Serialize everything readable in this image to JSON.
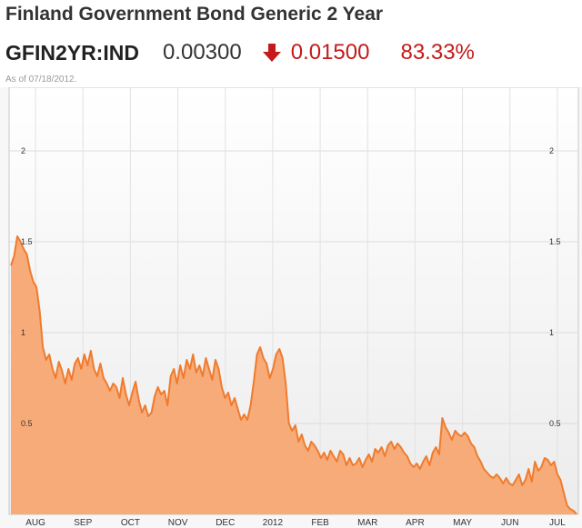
{
  "header": {
    "title": "Finland Government Bond Generic 2 Year",
    "ticker": "GFIN2YR:IND",
    "price": "0.00300",
    "change": "0.01500",
    "change_pct": "83.33%",
    "as_of": "As of 07/18/2012.",
    "change_icon": "arrow-down-icon",
    "down_color": "#c41a1a"
  },
  "chart_data": {
    "type": "area",
    "title": "",
    "xlabel": "",
    "ylabel": "",
    "ylim": [
      0,
      2.35
    ],
    "y_ticks": [
      "0.5",
      "1",
      "1.5",
      "2"
    ],
    "x_tick_labels": [
      "AUG",
      "SEP",
      "OCT",
      "NOV",
      "DEC",
      "2012",
      "FEB",
      "MAR",
      "APR",
      "MAY",
      "JUN",
      "JUL"
    ],
    "grid": true,
    "legend": "none",
    "fill_color": "#f7ab78",
    "line_color": "#ef7b2e",
    "series": [
      {
        "values": [
          1.37,
          1.42,
          1.53,
          1.5,
          1.46,
          1.43,
          1.34,
          1.28,
          1.25,
          1.12,
          0.92,
          0.85,
          0.88,
          0.8,
          0.75,
          0.84,
          0.79,
          0.72,
          0.8,
          0.74,
          0.83,
          0.86,
          0.8,
          0.88,
          0.82,
          0.9,
          0.8,
          0.76,
          0.83,
          0.75,
          0.72,
          0.68,
          0.72,
          0.7,
          0.64,
          0.75,
          0.66,
          0.6,
          0.67,
          0.73,
          0.63,
          0.56,
          0.6,
          0.54,
          0.56,
          0.65,
          0.7,
          0.66,
          0.68,
          0.6,
          0.76,
          0.8,
          0.72,
          0.82,
          0.75,
          0.85,
          0.8,
          0.88,
          0.78,
          0.82,
          0.76,
          0.86,
          0.8,
          0.74,
          0.85,
          0.8,
          0.7,
          0.64,
          0.67,
          0.6,
          0.64,
          0.58,
          0.52,
          0.55,
          0.52,
          0.6,
          0.73,
          0.88,
          0.92,
          0.86,
          0.83,
          0.75,
          0.8,
          0.88,
          0.91,
          0.86,
          0.72,
          0.5,
          0.46,
          0.49,
          0.4,
          0.44,
          0.38,
          0.35,
          0.4,
          0.38,
          0.35,
          0.31,
          0.34,
          0.3,
          0.35,
          0.32,
          0.29,
          0.35,
          0.33,
          0.27,
          0.31,
          0.27,
          0.28,
          0.31,
          0.26,
          0.3,
          0.33,
          0.29,
          0.36,
          0.34,
          0.37,
          0.32,
          0.38,
          0.4,
          0.36,
          0.39,
          0.37,
          0.34,
          0.32,
          0.28,
          0.26,
          0.28,
          0.25,
          0.29,
          0.32,
          0.27,
          0.34,
          0.37,
          0.33,
          0.53,
          0.48,
          0.45,
          0.41,
          0.46,
          0.44,
          0.43,
          0.45,
          0.43,
          0.39,
          0.37,
          0.32,
          0.29,
          0.25,
          0.23,
          0.21,
          0.2,
          0.22,
          0.2,
          0.17,
          0.2,
          0.17,
          0.16,
          0.19,
          0.22,
          0.16,
          0.19,
          0.25,
          0.18,
          0.29,
          0.24,
          0.26,
          0.31,
          0.3,
          0.27,
          0.29,
          0.22,
          0.19,
          0.12,
          0.05,
          0.03,
          0.02,
          0.003
        ]
      }
    ]
  }
}
